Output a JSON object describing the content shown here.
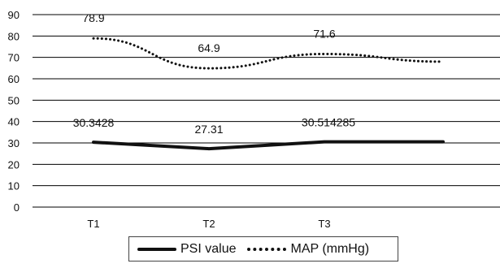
{
  "chart_data": {
    "type": "line",
    "categories": [
      "T1",
      "T2",
      "T3",
      ""
    ],
    "ylim": [
      0,
      90
    ],
    "yticks": [
      0,
      10,
      20,
      30,
      40,
      50,
      60,
      70,
      80,
      90
    ],
    "grid": true,
    "legend_position": "bottom",
    "series": [
      {
        "name": "PSI value",
        "style": "solid",
        "color": "#111111",
        "values": [
          30.3428,
          27.31,
          30.514285,
          30.5
        ],
        "labels": [
          "30.3428",
          "27.31",
          "30.514285",
          ""
        ]
      },
      {
        "name": "MAP (mmHg)",
        "style": "dotted",
        "color": "#111111",
        "values": [
          78.9,
          64.9,
          71.6,
          68.0
        ],
        "labels": [
          "78.9",
          "64.9",
          "71.6",
          ""
        ]
      }
    ]
  }
}
